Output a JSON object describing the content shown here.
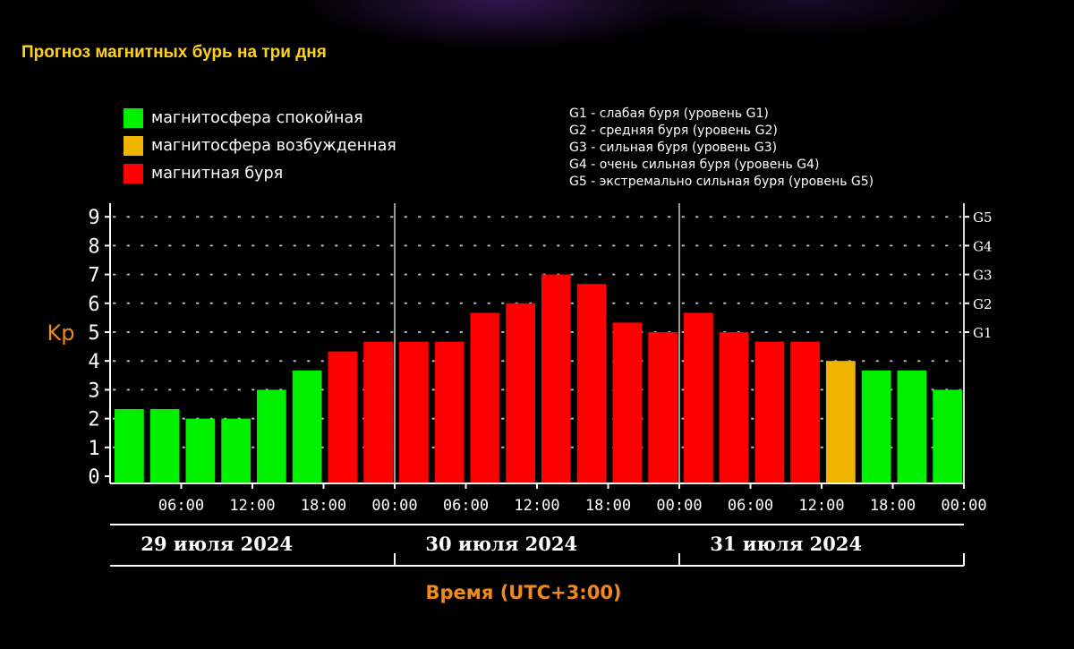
{
  "page_title": "Прогноз магнитных бурь на три дня",
  "colors": {
    "calm": "#00f000",
    "excited": "#f0b400",
    "storm": "#ff0000",
    "accent_orange": "#f08a1c",
    "title_yellow": "#ffd21e"
  },
  "legend": {
    "states": [
      {
        "label": "магнитосфера спокойная",
        "color": "#00f000"
      },
      {
        "label": "магнитосфера возбужденная",
        "color": "#f0b400"
      },
      {
        "label": "магнитная буря",
        "color": "#ff0000"
      }
    ],
    "storm_levels": [
      "G1 - слабая буря (уровень G1)",
      "G2 - средняя буря (уровень G2)",
      "G3 - сильная буря (уровень G3)",
      "G4 - очень сильная буря (уровень G4)",
      "G5 - экстремально сильная буря (уровень G5)"
    ]
  },
  "chart_data": {
    "type": "bar",
    "ylabel": "Kp",
    "xlabel": "Время (UTC+3:00)",
    "ylim": [
      0,
      9
    ],
    "y_ticks": [
      0,
      1,
      2,
      3,
      4,
      5,
      6,
      7,
      8,
      9
    ],
    "g_levels": [
      {
        "label": "G1",
        "kp": 5
      },
      {
        "label": "G2",
        "kp": 6
      },
      {
        "label": "G3",
        "kp": 7
      },
      {
        "label": "G4",
        "kp": 8
      },
      {
        "label": "G5",
        "kp": 9
      }
    ],
    "time_labels": [
      "06:00",
      "12:00",
      "18:00",
      "00:00",
      "06:00",
      "12:00",
      "18:00",
      "00:00",
      "06:00",
      "12:00",
      "18:00",
      "00:00"
    ],
    "days": [
      "29 июля 2024",
      "30 июля 2024",
      "31 июля 2024"
    ],
    "grid": "dotted",
    "values": [
      2.33,
      2.33,
      2.0,
      2.0,
      3.0,
      3.67,
      4.33,
      4.67,
      4.67,
      4.67,
      5.67,
      6.0,
      7.0,
      6.67,
      5.33,
      5.0,
      5.67,
      5.0,
      4.67,
      4.67,
      4.0,
      3.67,
      3.67,
      3.0
    ],
    "levels": [
      "calm",
      "calm",
      "calm",
      "calm",
      "calm",
      "calm",
      "storm",
      "storm",
      "storm",
      "storm",
      "storm",
      "storm",
      "storm",
      "storm",
      "storm",
      "storm",
      "storm",
      "storm",
      "storm",
      "storm",
      "excited",
      "calm",
      "calm",
      "calm"
    ]
  }
}
